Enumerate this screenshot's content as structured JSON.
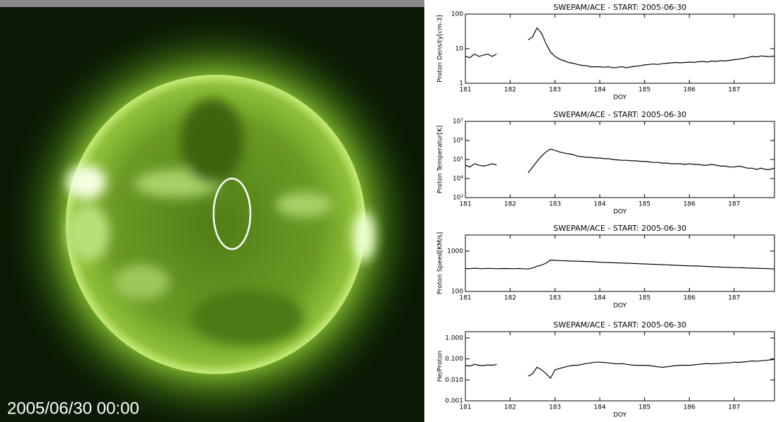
{
  "image": {
    "timestamp": "2005/06/30 00:00"
  },
  "chart_data": [
    {
      "type": "line",
      "title": "SWEPAM/ACE - START: 2005-06-30",
      "xlabel": "DOY",
      "ylabel": "Proton Density[cm-3]",
      "log_y": true,
      "color": "#000000",
      "xlim": [
        181,
        187.9
      ],
      "xticks": [
        181,
        182,
        183,
        184,
        185,
        186,
        187
      ],
      "ylim": [
        1,
        100
      ],
      "yticks": [
        1,
        10,
        100
      ],
      "x": [
        181,
        181.1,
        181.2,
        181.3,
        181.4,
        181.5,
        181.6,
        181.7,
        181.8,
        181.9,
        182,
        182.1,
        182.2,
        182.3,
        182.4,
        182.5,
        182.6,
        182.7,
        182.8,
        182.9,
        183,
        183.1,
        183.2,
        183.3,
        183.4,
        183.5,
        183.6,
        183.7,
        183.8,
        183.9,
        184,
        184.1,
        184.2,
        184.3,
        184.4,
        184.5,
        184.6,
        184.7,
        184.8,
        184.9,
        185,
        185.1,
        185.2,
        185.3,
        185.4,
        185.5,
        185.6,
        185.7,
        185.8,
        185.9,
        186,
        186.1,
        186.2,
        186.3,
        186.4,
        186.5,
        186.6,
        186.7,
        186.8,
        186.9,
        187,
        187.1,
        187.2,
        187.3,
        187.4,
        187.5,
        187.6,
        187.7,
        187.8,
        187.9
      ],
      "values": [
        6,
        5.5,
        7,
        6,
        6.5,
        7,
        6,
        7,
        null,
        null,
        null,
        null,
        null,
        null,
        18,
        22,
        40,
        28,
        14,
        8,
        6,
        5,
        4.5,
        4,
        3.8,
        3.5,
        3.3,
        3.2,
        3,
        3,
        3,
        2.9,
        3,
        2.8,
        2.9,
        3,
        2.8,
        3,
        3.1,
        3.2,
        3.4,
        3.5,
        3.6,
        3.5,
        3.7,
        3.8,
        3.9,
        4,
        3.9,
        4,
        4.1,
        4,
        4.2,
        4.3,
        4.1,
        4.4,
        4.3,
        4.5,
        4.4,
        4.6,
        4.8,
        5,
        5.2,
        5.5,
        6,
        5.8,
        6.2,
        6,
        5.9,
        6.1
      ]
    },
    {
      "type": "line",
      "title": "SWEPAM/ACE - START: 2005-06-30",
      "xlabel": "DOY",
      "ylabel": "Proton Temperatur[K]",
      "log_y": true,
      "color": "#000000",
      "xlim": [
        181,
        187.9
      ],
      "xticks": [
        181,
        182,
        183,
        184,
        185,
        186,
        187
      ],
      "ylim": [
        1000,
        10000000
      ],
      "yticks": [
        {
          "value": 1000,
          "label": "10³"
        },
        {
          "value": 10000,
          "label": "10⁴"
        },
        {
          "value": 100000,
          "label": "10⁵"
        },
        {
          "value": 1000000,
          "label": "10⁶"
        },
        {
          "value": 10000000,
          "label": "10⁷"
        }
      ],
      "x": [
        181,
        181.1,
        181.2,
        181.3,
        181.4,
        181.5,
        181.6,
        181.7,
        181.8,
        181.9,
        182,
        182.1,
        182.2,
        182.3,
        182.4,
        182.5,
        182.6,
        182.7,
        182.8,
        182.9,
        183,
        183.1,
        183.2,
        183.3,
        183.4,
        183.5,
        183.6,
        183.7,
        183.8,
        183.9,
        184,
        184.1,
        184.2,
        184.3,
        184.4,
        184.5,
        184.6,
        184.7,
        184.8,
        184.9,
        185,
        185.1,
        185.2,
        185.3,
        185.4,
        185.5,
        185.6,
        185.7,
        185.8,
        185.9,
        186,
        186.1,
        186.2,
        186.3,
        186.4,
        186.5,
        186.6,
        186.7,
        186.8,
        186.9,
        187,
        187.1,
        187.2,
        187.3,
        187.4,
        187.5,
        187.6,
        187.7,
        187.8,
        187.9
      ],
      "values": [
        50000,
        40000,
        60000,
        50000,
        45000,
        50000,
        60000,
        50000,
        null,
        null,
        null,
        null,
        null,
        null,
        20000,
        40000,
        80000,
        150000,
        250000,
        350000,
        300000,
        250000,
        220000,
        200000,
        180000,
        150000,
        140000,
        130000,
        130000,
        120000,
        120000,
        110000,
        110000,
        100000,
        95000,
        90000,
        90000,
        85000,
        85000,
        80000,
        80000,
        75000,
        70000,
        70000,
        65000,
        65000,
        60000,
        60000,
        60000,
        55000,
        60000,
        55000,
        55000,
        50000,
        50000,
        55000,
        50000,
        45000,
        45000,
        40000,
        40000,
        45000,
        40000,
        35000,
        35000,
        30000,
        35000,
        30000,
        30000,
        35000
      ]
    },
    {
      "type": "line",
      "title": "SWEPAM/ACE - START: 2005-06-30",
      "xlabel": "DOY",
      "ylabel": "Proton Speed[KM/s]",
      "log_y": true,
      "color": "#000000",
      "xlim": [
        181,
        187.9
      ],
      "xticks": [
        181,
        182,
        183,
        184,
        185,
        186,
        187
      ],
      "ylim": [
        100,
        2500
      ],
      "yticks": [
        100,
        1000
      ],
      "x": [
        181,
        181.1,
        181.2,
        181.3,
        181.4,
        181.5,
        181.6,
        181.7,
        181.8,
        181.9,
        182,
        182.1,
        182.2,
        182.3,
        182.4,
        182.5,
        182.6,
        182.7,
        182.8,
        182.9,
        183,
        183.1,
        183.2,
        183.3,
        183.4,
        183.5,
        183.6,
        183.7,
        183.8,
        183.9,
        184,
        184.1,
        184.2,
        184.3,
        184.4,
        184.5,
        184.6,
        184.7,
        184.8,
        184.9,
        185,
        185.1,
        185.2,
        185.3,
        185.4,
        185.5,
        185.6,
        185.7,
        185.8,
        185.9,
        186,
        186.1,
        186.2,
        186.3,
        186.4,
        186.5,
        186.6,
        186.7,
        186.8,
        186.9,
        187,
        187.1,
        187.2,
        187.3,
        187.4,
        187.5,
        187.6,
        187.7,
        187.8,
        187.9
      ],
      "values": [
        370,
        365,
        375,
        370,
        368,
        372,
        370,
        365,
        368,
        370,
        368,
        365,
        370,
        366,
        360,
        380,
        420,
        450,
        500,
        600,
        590,
        580,
        575,
        570,
        565,
        560,
        555,
        550,
        545,
        540,
        530,
        525,
        520,
        515,
        510,
        505,
        500,
        495,
        490,
        485,
        480,
        475,
        470,
        465,
        460,
        455,
        450,
        445,
        440,
        435,
        430,
        428,
        425,
        420,
        415,
        410,
        405,
        400,
        398,
        395,
        390,
        388,
        385,
        380,
        378,
        375,
        372,
        370,
        365,
        360
      ]
    },
    {
      "type": "line",
      "title": "SWEPAM/ACE - START: 2005-06-30",
      "xlabel": "DOY",
      "ylabel": "He/Proton",
      "log_y": true,
      "color": "#000000",
      "xlim": [
        181,
        187.9
      ],
      "xticks": [
        181,
        182,
        183,
        184,
        185,
        186,
        187
      ],
      "ylim": [
        0.001,
        2
      ],
      "yticks": [
        {
          "value": 0.001,
          "label": "0.001"
        },
        {
          "value": 0.01,
          "label": "0.010"
        },
        {
          "value": 0.1,
          "label": "0.100"
        },
        {
          "value": 1,
          "label": "1.000"
        }
      ],
      "x": [
        181,
        181.1,
        181.2,
        181.3,
        181.4,
        181.5,
        181.6,
        181.7,
        181.8,
        181.9,
        182,
        182.1,
        182.2,
        182.3,
        182.4,
        182.5,
        182.6,
        182.7,
        182.8,
        182.9,
        183,
        183.1,
        183.2,
        183.3,
        183.4,
        183.5,
        183.6,
        183.7,
        183.8,
        183.9,
        184,
        184.1,
        184.2,
        184.3,
        184.4,
        184.5,
        184.6,
        184.7,
        184.8,
        184.9,
        185,
        185.1,
        185.2,
        185.3,
        185.4,
        185.5,
        185.6,
        185.7,
        185.8,
        185.9,
        186,
        186.1,
        186.2,
        186.3,
        186.4,
        186.5,
        186.6,
        186.7,
        186.8,
        186.9,
        187,
        187.1,
        187.2,
        187.3,
        187.4,
        187.5,
        187.6,
        187.7,
        187.8,
        187.9
      ],
      "values": [
        0.05,
        0.045,
        0.055,
        0.05,
        0.048,
        0.052,
        0.05,
        0.055,
        null,
        null,
        null,
        null,
        null,
        null,
        0.015,
        0.02,
        0.04,
        0.03,
        0.02,
        0.012,
        0.03,
        0.035,
        0.04,
        0.045,
        0.05,
        0.05,
        0.055,
        0.06,
        0.065,
        0.07,
        0.07,
        0.068,
        0.065,
        0.06,
        0.058,
        0.06,
        0.055,
        0.052,
        0.05,
        0.05,
        0.05,
        0.048,
        0.045,
        0.042,
        0.04,
        0.042,
        0.045,
        0.048,
        0.05,
        0.05,
        0.05,
        0.052,
        0.055,
        0.058,
        0.06,
        0.058,
        0.06,
        0.062,
        0.065,
        0.065,
        0.07,
        0.068,
        0.072,
        0.075,
        0.08,
        0.078,
        0.082,
        0.085,
        0.09,
        0.095
      ]
    }
  ]
}
